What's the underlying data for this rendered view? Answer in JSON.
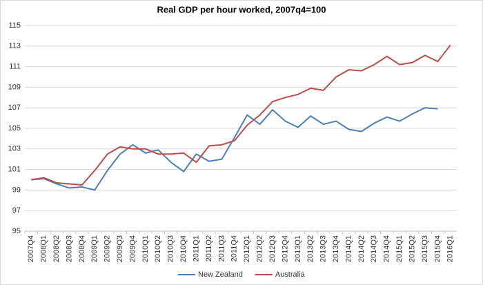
{
  "chart_data": {
    "type": "line",
    "title": "Real GDP per hour worked, 2007q4=100",
    "categories": [
      "2007Q4",
      "2008Q1",
      "2008Q2",
      "2008Q3",
      "2008Q4",
      "2009Q1",
      "2009Q2",
      "2009Q3",
      "2009Q4",
      "2010Q1",
      "2010Q2",
      "2010Q3",
      "2010Q4",
      "2011Q1",
      "2011Q2",
      "2011Q3",
      "2011Q4",
      "2012Q1",
      "2012Q2",
      "2012Q3",
      "2012Q4",
      "2013Q1",
      "2013Q2",
      "2013Q3",
      "2013Q4",
      "2014Q1",
      "2014Q2",
      "2014Q3",
      "2014Q4",
      "2015Q1",
      "2015Q2",
      "2015Q3",
      "2015Q4",
      "2016Q1"
    ],
    "series": [
      {
        "name": "New Zealand",
        "color": "#4a7ebb",
        "values": [
          100,
          100.1,
          99.6,
          99.2,
          99.3,
          99.0,
          100.9,
          102.5,
          103.4,
          102.6,
          102.9,
          101.7,
          100.8,
          102.5,
          101.8,
          102.0,
          104.1,
          106.3,
          105.4,
          106.8,
          105.7,
          105.1,
          106.2,
          105.4,
          105.7,
          104.9,
          104.7,
          105.5,
          106.1,
          105.7,
          106.4,
          107.0,
          106.9,
          null
        ]
      },
      {
        "name": "Australia",
        "color": "#be4b48",
        "values": [
          100,
          100.2,
          99.7,
          99.6,
          99.5,
          100.9,
          102.5,
          103.2,
          103.0,
          103.0,
          102.5,
          102.5,
          102.6,
          101.7,
          103.3,
          103.4,
          103.8,
          105.3,
          106.3,
          107.6,
          108.0,
          108.3,
          108.9,
          108.7,
          110.0,
          110.7,
          110.6,
          111.2,
          112.0,
          111.2,
          111.4,
          112.1,
          111.5,
          113.1
        ]
      }
    ],
    "ylim": [
      95,
      115
    ],
    "yticks": [
      95,
      97,
      99,
      101,
      103,
      105,
      107,
      109,
      111,
      113,
      115
    ],
    "grid": true,
    "legend": "bottom"
  }
}
